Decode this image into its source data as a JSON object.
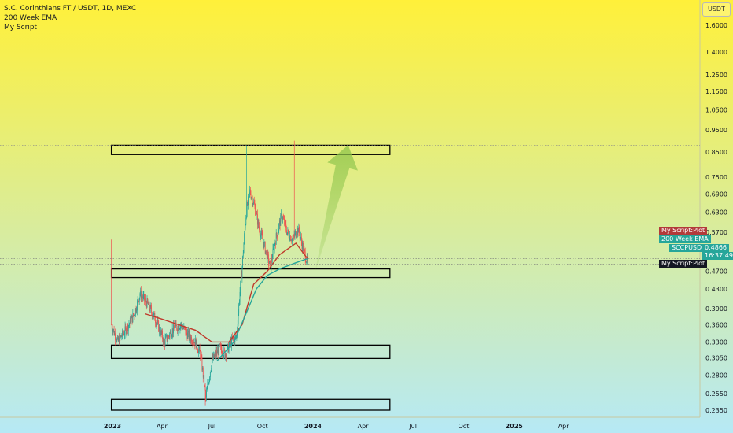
{
  "legend": {
    "symbol": "S.C. Corinthians FT / USDT, 1D, MEXC",
    "indicator1": "200 Week EMA",
    "indicator2": "My Script"
  },
  "currency_button": "USDT",
  "price_tags": {
    "plot_top": "My Script:Plot",
    "ema": "200 Week EMA",
    "symbol": "SCCPUSDT",
    "price": "0.4866",
    "countdown": "16:37:49",
    "plot_bottom": "My Script:Plot"
  },
  "colors": {
    "bg_top": "#fff03a",
    "bg_bottom": "#b6e9f5",
    "up": "#26a69a",
    "down": "#ef5350",
    "ema": "#26a69a",
    "plot": "#c0392b",
    "arrow": "#8bc34a",
    "box": "#000000"
  },
  "chart_data": {
    "type": "candlestick",
    "scale": "log",
    "y_ticks": [
      "1.6000",
      "1.4000",
      "1.2500",
      "1.1500",
      "1.0500",
      "0.9500",
      "0.8500",
      "0.7500",
      "0.6900",
      "0.6300",
      "0.5700",
      "0.4700",
      "0.4300",
      "0.3900",
      "0.3600",
      "0.3300",
      "0.3050",
      "0.2800",
      "0.2550",
      "0.2350"
    ],
    "x_ticks": [
      "2023",
      "Apr",
      "Jul",
      "Oct",
      "2024",
      "Apr",
      "Jul",
      "Oct",
      "2025",
      "Apr"
    ],
    "last_price": 0.4866,
    "close_path": [
      [
        "2022-12-30",
        0.36
      ],
      [
        "2023-01-10",
        0.33
      ],
      [
        "2023-01-25",
        0.35
      ],
      [
        "2023-02-10",
        0.38
      ],
      [
        "2023-02-20",
        0.42
      ],
      [
        "2023-03-05",
        0.4
      ],
      [
        "2023-03-20",
        0.37
      ],
      [
        "2023-04-05",
        0.33
      ],
      [
        "2023-04-20",
        0.35
      ],
      [
        "2023-05-05",
        0.36
      ],
      [
        "2023-05-20",
        0.34
      ],
      [
        "2023-06-01",
        0.33
      ],
      [
        "2023-06-10",
        0.31
      ],
      [
        "2023-06-20",
        0.25
      ],
      [
        "2023-07-01",
        0.3
      ],
      [
        "2023-07-15",
        0.32
      ],
      [
        "2023-07-25",
        0.31
      ],
      [
        "2023-08-05",
        0.33
      ],
      [
        "2023-08-15",
        0.34
      ],
      [
        "2023-08-25",
        0.48
      ],
      [
        "2023-09-01",
        0.62
      ],
      [
        "2023-09-08",
        0.7
      ],
      [
        "2023-09-15",
        0.66
      ],
      [
        "2023-09-25",
        0.58
      ],
      [
        "2023-10-05",
        0.53
      ],
      [
        "2023-10-15",
        0.48
      ],
      [
        "2023-10-25",
        0.55
      ],
      [
        "2023-11-05",
        0.62
      ],
      [
        "2023-11-15",
        0.57
      ],
      [
        "2023-11-25",
        0.55
      ],
      [
        "2023-12-05",
        0.58
      ],
      [
        "2023-12-15",
        0.52
      ],
      [
        "2023-12-22",
        0.49
      ]
    ],
    "ema_200w": [
      [
        "2023-07-10",
        0.3
      ],
      [
        "2023-08-10",
        0.33
      ],
      [
        "2023-09-01",
        0.38
      ],
      [
        "2023-09-20",
        0.43
      ],
      [
        "2023-10-10",
        0.46
      ],
      [
        "2023-11-01",
        0.475
      ],
      [
        "2023-12-01",
        0.49
      ],
      [
        "2023-12-22",
        0.5
      ]
    ],
    "my_script_plot": [
      [
        "2023-03-01",
        0.38
      ],
      [
        "2023-04-01",
        0.37
      ],
      [
        "2023-05-01",
        0.36
      ],
      [
        "2023-06-01",
        0.35
      ],
      [
        "2023-07-01",
        0.33
      ],
      [
        "2023-08-01",
        0.33
      ],
      [
        "2023-08-25",
        0.36
      ],
      [
        "2023-09-15",
        0.44
      ],
      [
        "2023-10-10",
        0.47
      ],
      [
        "2023-11-01",
        0.51
      ],
      [
        "2023-12-01",
        0.54
      ],
      [
        "2023-12-22",
        0.5
      ]
    ],
    "zones": [
      {
        "x1": "2022-12-30",
        "x2": "2024-05-20",
        "y_low": 0.84,
        "y_high": 0.88
      },
      {
        "x1": "2022-12-30",
        "x2": "2024-05-20",
        "y_low": 0.455,
        "y_high": 0.475
      },
      {
        "x1": "2022-12-30",
        "x2": "2024-05-20",
        "y_low": 0.304,
        "y_high": 0.325
      },
      {
        "x1": "2022-12-30",
        "x2": "2024-05-20",
        "y_low": 0.235,
        "y_high": 0.248
      }
    ],
    "projection": {
      "from": [
        "2024-01-05",
        0.47
      ],
      "to": [
        "2024-03-05",
        0.88
      ]
    }
  }
}
